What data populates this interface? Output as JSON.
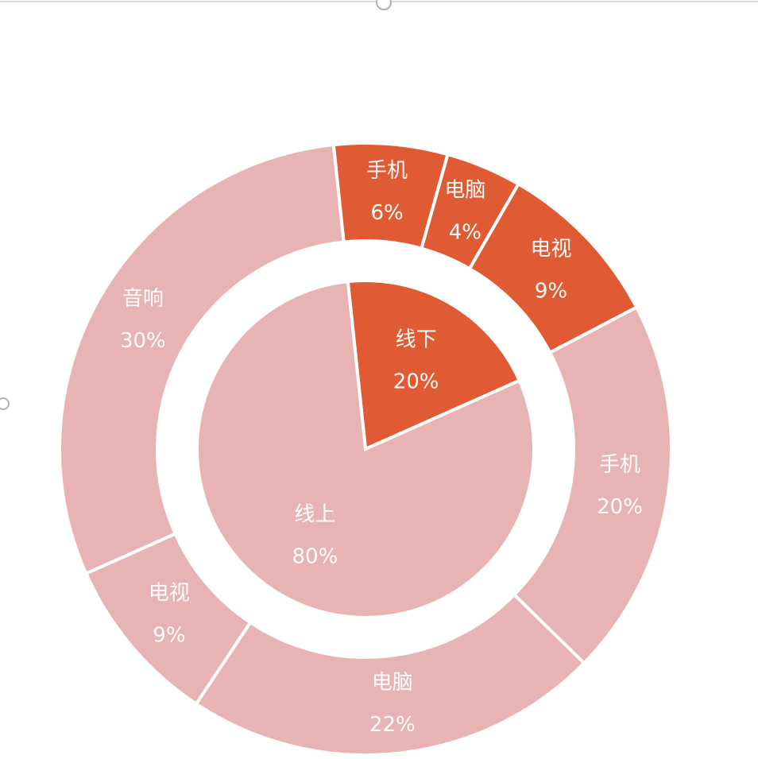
{
  "chart_data": {
    "type": "pie",
    "subtype": "nested-donut",
    "colors": {
      "offline": "#E05A33",
      "online": "#E8B3B3"
    },
    "inner": {
      "slices": [
        {
          "name": "线下",
          "value": 20,
          "label": "20%",
          "group": "offline"
        },
        {
          "name": "线上",
          "value": 80,
          "label": "80%",
          "group": "online"
        }
      ]
    },
    "outer": {
      "slices": [
        {
          "name": "手机",
          "value": 6,
          "label": "6%",
          "group": "offline"
        },
        {
          "name": "电脑",
          "value": 4,
          "label": "4%",
          "group": "offline"
        },
        {
          "name": "电视",
          "value": 9,
          "label": "9%",
          "group": "offline"
        },
        {
          "name": "手机",
          "value": 20,
          "label": "20%",
          "group": "online"
        },
        {
          "name": "电脑",
          "value": 22,
          "label": "22%",
          "group": "online"
        },
        {
          "name": "电视",
          "value": 9,
          "label": "9%",
          "group": "online"
        },
        {
          "name": "音响",
          "value": 30,
          "label": "30%",
          "group": "online"
        }
      ]
    }
  }
}
